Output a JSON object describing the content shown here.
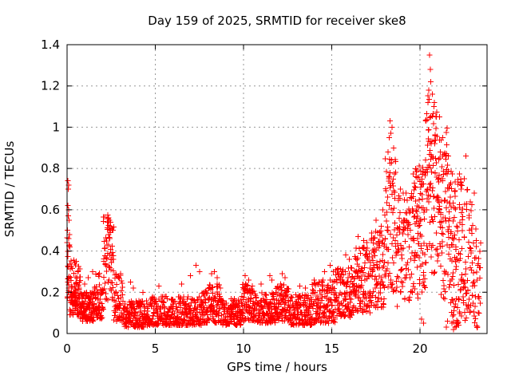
{
  "chart_data": {
    "type": "scatter",
    "title": "Day 159 of 2025, SRMTID for receiver ske8",
    "xlabel": "GPS time / hours",
    "ylabel": "SRMTID / TECUs",
    "xlim": [
      0,
      23.8
    ],
    "ylim": [
      0,
      1.4
    ],
    "xticks": [
      0,
      5,
      10,
      15,
      20
    ],
    "xtick_labels": [
      "0",
      "5",
      "10",
      "15",
      "20"
    ],
    "yticks": [
      0,
      0.2,
      0.4,
      0.6,
      0.8,
      1.0,
      1.2,
      1.4
    ],
    "ytick_labels": [
      "0",
      "0.2",
      "0.4",
      "0.6",
      "0.8",
      "1",
      "1.2",
      "1.4"
    ],
    "grid": true,
    "grid_style": "dotted",
    "legend_position": "none",
    "marker": "plus",
    "marker_color": "#ff0000",
    "marker_size": 7,
    "grid_color": "#989898",
    "axis_color": "#000000",
    "background": "#ffffff",
    "seed": 20250159,
    "series_name": "SRMTID",
    "segment_format": "[x_start_hours, x_end_hours, n_points, y_min_TECUs, y_max_TECUs, skew(>1 biases low,<1 biases high)]",
    "segments": [
      [
        0.0,
        0.15,
        22,
        0.14,
        0.48,
        1.0
      ],
      [
        0.15,
        0.75,
        95,
        0.09,
        0.36,
        1.7
      ],
      [
        0.75,
        1.55,
        110,
        0.06,
        0.2,
        1.5
      ],
      [
        1.55,
        2.05,
        60,
        0.07,
        0.3,
        1.4
      ],
      [
        2.05,
        2.65,
        65,
        0.14,
        0.575,
        0.8
      ],
      [
        2.65,
        3.15,
        50,
        0.06,
        0.3,
        1.6
      ],
      [
        3.15,
        4.6,
        150,
        0.03,
        0.16,
        1.3
      ],
      [
        4.6,
        7.6,
        300,
        0.04,
        0.18,
        1.5
      ],
      [
        7.6,
        8.7,
        120,
        0.05,
        0.24,
        1.3
      ],
      [
        8.7,
        9.9,
        130,
        0.04,
        0.17,
        1.4
      ],
      [
        9.9,
        10.6,
        80,
        0.06,
        0.24,
        1.2
      ],
      [
        10.6,
        11.8,
        130,
        0.05,
        0.2,
        1.4
      ],
      [
        11.8,
        12.6,
        90,
        0.06,
        0.24,
        1.2
      ],
      [
        12.6,
        13.9,
        140,
        0.04,
        0.19,
        1.4
      ],
      [
        13.9,
        15.2,
        130,
        0.05,
        0.26,
        1.3
      ],
      [
        15.2,
        16.2,
        110,
        0.08,
        0.32,
        1.2
      ],
      [
        16.2,
        17.2,
        110,
        0.1,
        0.42,
        1.1
      ],
      [
        17.2,
        18.0,
        90,
        0.12,
        0.5,
        1.1
      ],
      [
        18.0,
        18.65,
        70,
        0.2,
        0.85,
        0.9
      ],
      [
        18.65,
        19.6,
        90,
        0.12,
        0.68,
        0.8
      ],
      [
        19.6,
        20.3,
        90,
        0.15,
        0.82,
        0.85
      ],
      [
        20.3,
        21.0,
        90,
        0.28,
        1.16,
        0.9
      ],
      [
        21.0,
        21.6,
        80,
        0.15,
        1.0,
        1.0
      ],
      [
        21.6,
        22.4,
        110,
        0.03,
        0.8,
        1.0
      ],
      [
        22.4,
        23.1,
        70,
        0.05,
        0.7,
        1.0
      ],
      [
        23.1,
        23.45,
        25,
        0.02,
        0.55,
        1.1
      ]
    ],
    "outlier_points": [
      [
        0.04,
        0.74
      ],
      [
        0.08,
        0.72
      ],
      [
        0.06,
        0.7
      ],
      [
        0.05,
        0.62
      ],
      [
        0.09,
        0.6
      ],
      [
        0.07,
        0.57
      ],
      [
        0.12,
        0.55
      ],
      [
        0.03,
        0.5
      ],
      [
        0.1,
        0.46
      ],
      [
        0.15,
        0.42
      ],
      [
        1.0,
        0.24
      ],
      [
        1.2,
        0.27
      ],
      [
        1.45,
        0.3
      ],
      [
        2.3,
        0.575
      ],
      [
        2.35,
        0.56
      ],
      [
        2.4,
        0.55
      ],
      [
        2.28,
        0.54
      ],
      [
        2.45,
        0.52
      ],
      [
        2.55,
        0.5
      ],
      [
        3.6,
        0.25
      ],
      [
        3.75,
        0.22
      ],
      [
        4.3,
        0.2
      ],
      [
        5.2,
        0.23
      ],
      [
        6.5,
        0.24
      ],
      [
        7.0,
        0.28
      ],
      [
        7.3,
        0.33
      ],
      [
        7.5,
        0.3
      ],
      [
        8.2,
        0.29
      ],
      [
        8.35,
        0.3
      ],
      [
        8.5,
        0.27
      ],
      [
        10.1,
        0.28
      ],
      [
        10.3,
        0.26
      ],
      [
        11.0,
        0.24
      ],
      [
        11.5,
        0.28
      ],
      [
        11.6,
        0.26
      ],
      [
        12.2,
        0.29
      ],
      [
        12.35,
        0.27
      ],
      [
        13.2,
        0.23
      ],
      [
        13.5,
        0.22
      ],
      [
        14.6,
        0.3
      ],
      [
        14.9,
        0.33
      ],
      [
        15.1,
        0.3
      ],
      [
        15.8,
        0.38
      ],
      [
        16.0,
        0.36
      ],
      [
        16.5,
        0.47
      ],
      [
        16.8,
        0.45
      ],
      [
        17.0,
        0.44
      ],
      [
        17.5,
        0.55
      ],
      [
        17.8,
        0.52
      ],
      [
        17.9,
        0.6
      ],
      [
        18.2,
        0.88
      ],
      [
        18.25,
        0.95
      ],
      [
        18.3,
        1.03
      ],
      [
        18.35,
        0.97
      ],
      [
        18.42,
        1.0
      ],
      [
        18.5,
        0.9
      ],
      [
        18.9,
        0.7
      ],
      [
        19.2,
        0.68
      ],
      [
        20.1,
        0.07
      ],
      [
        20.2,
        0.05
      ],
      [
        20.45,
        1.12
      ],
      [
        20.5,
        1.18
      ],
      [
        20.55,
        1.35
      ],
      [
        20.58,
        1.28
      ],
      [
        20.62,
        1.22
      ],
      [
        20.7,
        1.16
      ],
      [
        20.8,
        1.1
      ],
      [
        20.6,
        1.05
      ],
      [
        21.1,
        1.05
      ],
      [
        21.3,
        0.95
      ],
      [
        21.5,
        0.03
      ],
      [
        21.55,
        0.06
      ],
      [
        21.8,
        0.05
      ],
      [
        21.9,
        0.02
      ],
      [
        22.0,
        0.03
      ],
      [
        22.2,
        0.04
      ],
      [
        22.5,
        0.75
      ],
      [
        22.6,
        0.86
      ],
      [
        23.2,
        0.45
      ],
      [
        23.3,
        0.1
      ]
    ]
  }
}
